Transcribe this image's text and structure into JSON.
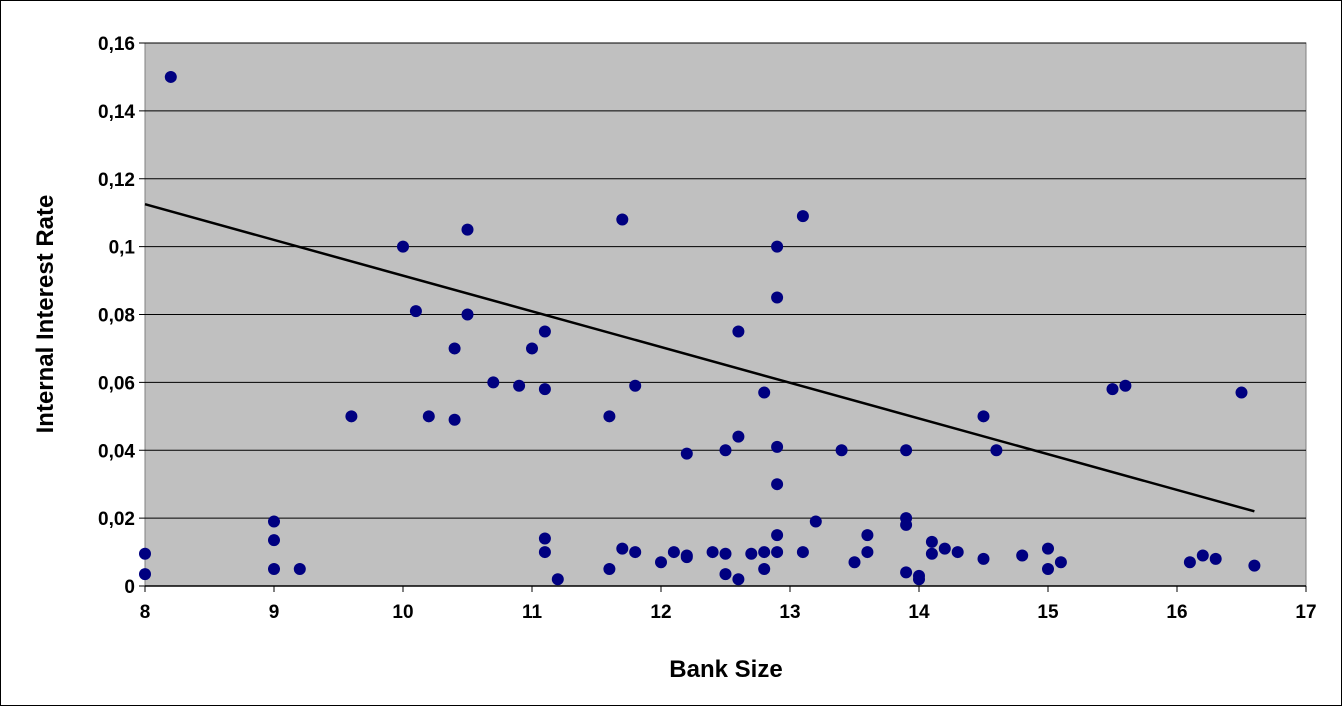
{
  "chart_data": {
    "type": "scatter",
    "title": "",
    "xlabel": "Bank Size",
    "ylabel": "Internal Interest Rate",
    "xlim": [
      8,
      17
    ],
    "ylim": [
      0,
      0.16
    ],
    "x_ticks": [
      "8",
      "9",
      "10",
      "11",
      "12",
      "13",
      "14",
      "15",
      "16",
      "17"
    ],
    "y_ticks": [
      "0",
      "0,02",
      "0,04",
      "0,06",
      "0,08",
      "0,1",
      "0,12",
      "0,14",
      "0,16"
    ],
    "grid": "horizontal",
    "legend": "none",
    "colors": {
      "plot_background": "#c0c0c0",
      "marker": "#000080",
      "trendline": "#000000",
      "gridline": "#000000"
    },
    "series": [
      {
        "points": [
          [
            8.0,
            0.0095
          ],
          [
            8.0,
            0.0035
          ],
          [
            8.2,
            0.15
          ],
          [
            9.0,
            0.019
          ],
          [
            9.0,
            0.0135
          ],
          [
            9.0,
            0.005
          ],
          [
            9.2,
            0.005
          ],
          [
            9.6,
            0.05
          ],
          [
            10.0,
            0.1
          ],
          [
            10.1,
            0.081
          ],
          [
            10.2,
            0.05
          ],
          [
            10.4,
            0.07
          ],
          [
            10.4,
            0.049
          ],
          [
            10.5,
            0.105
          ],
          [
            10.5,
            0.08
          ],
          [
            10.7,
            0.06
          ],
          [
            10.9,
            0.059
          ],
          [
            11.0,
            0.07
          ],
          [
            11.1,
            0.075
          ],
          [
            11.1,
            0.058
          ],
          [
            11.1,
            0.014
          ],
          [
            11.1,
            0.01
          ],
          [
            11.2,
            0.002
          ],
          [
            11.6,
            0.05
          ],
          [
            11.6,
            0.005
          ],
          [
            11.7,
            0.108
          ],
          [
            11.7,
            0.011
          ],
          [
            11.8,
            0.059
          ],
          [
            11.8,
            0.01
          ],
          [
            12.0,
            0.007
          ],
          [
            12.1,
            0.01
          ],
          [
            12.2,
            0.039
          ],
          [
            12.2,
            0.009
          ],
          [
            12.2,
            0.0085
          ],
          [
            12.4,
            0.01
          ],
          [
            12.5,
            0.04
          ],
          [
            12.5,
            0.0095
          ],
          [
            12.5,
            0.0035
          ],
          [
            12.6,
            0.075
          ],
          [
            12.6,
            0.044
          ],
          [
            12.6,
            0.002
          ],
          [
            12.7,
            0.0095
          ],
          [
            12.8,
            0.057
          ],
          [
            12.8,
            0.01
          ],
          [
            12.8,
            0.005
          ],
          [
            12.9,
            0.1
          ],
          [
            12.9,
            0.085
          ],
          [
            12.9,
            0.041
          ],
          [
            12.9,
            0.03
          ],
          [
            12.9,
            0.015
          ],
          [
            12.9,
            0.01
          ],
          [
            13.1,
            0.109
          ],
          [
            13.1,
            0.01
          ],
          [
            13.2,
            0.019
          ],
          [
            13.4,
            0.04
          ],
          [
            13.5,
            0.007
          ],
          [
            13.6,
            0.015
          ],
          [
            13.6,
            0.01
          ],
          [
            13.9,
            0.04
          ],
          [
            13.9,
            0.02
          ],
          [
            13.9,
            0.018
          ],
          [
            13.9,
            0.004
          ],
          [
            14.0,
            0.003
          ],
          [
            14.0,
            0.002
          ],
          [
            14.1,
            0.013
          ],
          [
            14.1,
            0.0095
          ],
          [
            14.2,
            0.011
          ],
          [
            14.3,
            0.01
          ],
          [
            14.5,
            0.05
          ],
          [
            14.5,
            0.008
          ],
          [
            14.6,
            0.04
          ],
          [
            14.8,
            0.009
          ],
          [
            15.0,
            0.011
          ],
          [
            15.0,
            0.005
          ],
          [
            15.1,
            0.007
          ],
          [
            15.5,
            0.058
          ],
          [
            15.6,
            0.059
          ],
          [
            16.1,
            0.007
          ],
          [
            16.2,
            0.009
          ],
          [
            16.3,
            0.008
          ],
          [
            16.5,
            0.057
          ],
          [
            16.6,
            0.006
          ]
        ]
      }
    ],
    "trendline": {
      "x": [
        8.0,
        16.6
      ],
      "y": [
        0.1125,
        0.022
      ]
    }
  }
}
